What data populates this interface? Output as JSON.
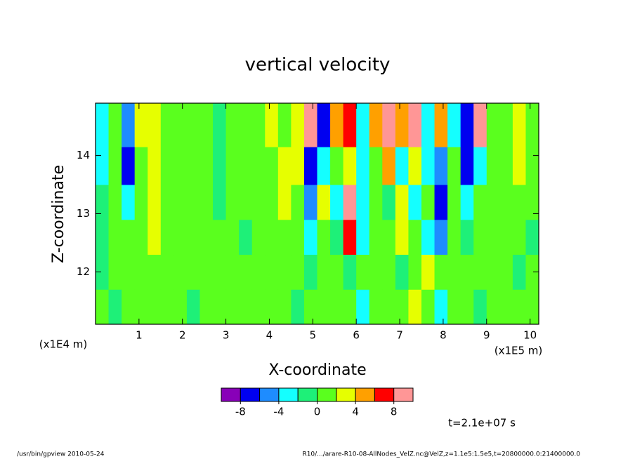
{
  "chart_data": {
    "type": "contour",
    "title": "vertical velocity",
    "x_label": "X-coordinate",
    "y_label": "Z-coordinate",
    "x_unit": "(x1E5 m)",
    "y_unit": "(x1E4 m)",
    "time_label": "t=2.1e+07 s",
    "footer_left": "/usr/bin/gpview  2010-05-24",
    "footer_right": "R10/.../arare-R10-08-AllNodes_VelZ.nc@VelZ,z=1.1e5:1.5e5,t=20800000.0:21400000.0",
    "xlim": [
      0,
      10.2
    ],
    "xticks": [
      1,
      2,
      3,
      4,
      5,
      6,
      7,
      8,
      9,
      10
    ],
    "ylim": [
      11.1,
      14.9
    ],
    "yticks": [
      12,
      13,
      14
    ],
    "x": [
      0.15,
      0.45,
      0.75,
      1.05,
      1.35,
      1.65,
      1.95,
      2.25,
      2.55,
      2.85,
      3.15,
      3.45,
      3.75,
      4.05,
      4.35,
      4.65,
      4.95,
      5.25,
      5.55,
      5.85,
      6.15,
      6.45,
      6.75,
      7.05,
      7.35,
      7.65,
      7.95,
      8.25,
      8.55,
      8.85,
      9.15,
      9.45,
      9.75,
      10.05
    ],
    "y": [
      11.4,
      12.0,
      12.6,
      13.2,
      13.8,
      14.5
    ],
    "z": [
      [
        1,
        -1,
        1,
        1,
        0.5,
        1,
        1,
        -1,
        1,
        1,
        1,
        0.5,
        1,
        1,
        1,
        -1,
        1,
        1,
        1,
        0.5,
        -3,
        1,
        1,
        1,
        3,
        1,
        -3,
        1,
        1,
        -1,
        1,
        1,
        0.5,
        1
      ],
      [
        -1,
        1,
        1,
        1,
        1,
        0.5,
        1,
        1,
        1,
        1,
        1,
        1,
        1,
        1,
        1,
        1,
        -1,
        1,
        1,
        -1,
        1,
        1,
        1,
        -1,
        1,
        3,
        1,
        1,
        1,
        1,
        1,
        1,
        -1,
        1
      ],
      [
        -1,
        1,
        1,
        1,
        3,
        1,
        1,
        1,
        1,
        1,
        1,
        -1,
        1,
        1,
        1,
        1,
        -3,
        1,
        -1,
        7,
        -3,
        1,
        1,
        3,
        1,
        -3,
        -5,
        1,
        -1,
        1,
        1,
        1,
        1,
        -1
      ],
      [
        -1,
        1,
        -3,
        1,
        3,
        1,
        1,
        1,
        1,
        -1,
        1,
        1,
        1,
        1,
        3,
        1,
        -5,
        3,
        -3,
        9,
        -3,
        1,
        -1,
        3,
        -3,
        1,
        -7,
        1,
        -3,
        1,
        1,
        1,
        1,
        1
      ],
      [
        -3,
        1,
        -7,
        1,
        3,
        1,
        1,
        1,
        1,
        -1,
        1,
        1,
        1,
        1,
        3,
        3,
        -7,
        -3,
        1,
        3,
        -3,
        1,
        5,
        -3,
        3,
        -3,
        -5,
        1,
        -7,
        -3,
        1,
        1,
        3,
        1
      ],
      [
        -3,
        1,
        -5,
        3,
        3,
        1,
        1,
        1,
        1,
        -1,
        1,
        1,
        1,
        3,
        1,
        3,
        9,
        -7,
        5,
        7,
        -3,
        5,
        9,
        5,
        9,
        -3,
        5,
        -3,
        -7,
        9,
        1,
        1,
        3,
        1
      ]
    ],
    "levels": [
      -8,
      -6,
      -4,
      -2,
      0,
      2,
      4,
      6,
      8
    ],
    "colors": [
      "#8800b8",
      "#0000f0",
      "#1e8cff",
      "#14ffff",
      "#1ef078",
      "#5aff1e",
      "#e6ff00",
      "#ffa000",
      "#ff0000",
      "#ff9696"
    ],
    "colorbar_ticks": [
      -8,
      -4,
      0,
      4,
      8
    ]
  }
}
